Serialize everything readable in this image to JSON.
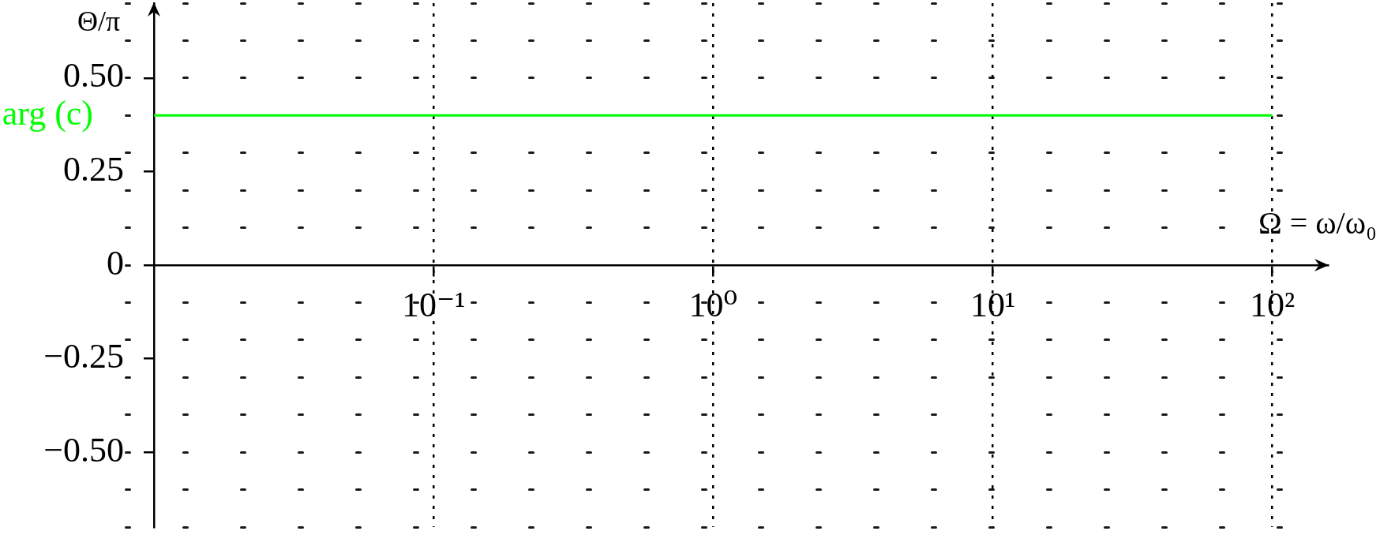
{
  "chart_data": {
    "type": "line",
    "xlabel": "Ω = ω/ω₀",
    "ylabel": "Θ/π",
    "series": [
      {
        "name": "arg (c)",
        "color": "#00ff00",
        "x": [
          0.01,
          100
        ],
        "values": [
          0.4,
          0.4
        ]
      }
    ],
    "xlim": [
      0.01,
      158
    ],
    "xticks": [
      {
        "value": 0.1,
        "label": "10⁻¹"
      },
      {
        "value": 1,
        "label": "10⁰"
      },
      {
        "value": 10,
        "label": "10¹"
      },
      {
        "value": 100,
        "label": "10²"
      }
    ],
    "ylim": [
      -0.7,
      0.7
    ],
    "yticks": [
      {
        "value": -0.5,
        "label": "−0.50"
      },
      {
        "value": -0.25,
        "label": "−0.25"
      },
      0,
      0.25,
      {
        "value": 0.5,
        "label": "0.50"
      }
    ],
    "log": "x",
    "grid": "x"
  }
}
